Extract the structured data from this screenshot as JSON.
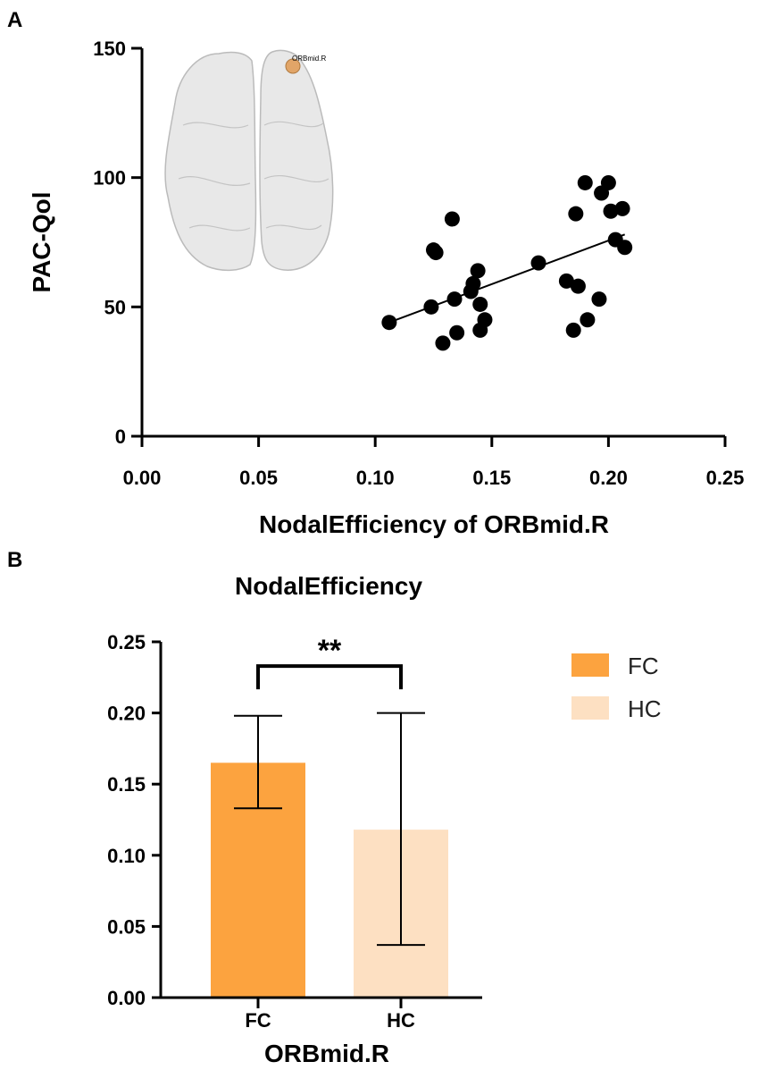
{
  "panels": {
    "a_label": "A",
    "b_label": "B"
  },
  "colors": {
    "axis": "#000000",
    "point": "#000000",
    "fc_bar": "#fca33f",
    "hc_bar": "#fde0c2",
    "brain_fill": "#e6e6e6",
    "brain_stroke": "#b4b4b4",
    "roi_node": "#e1a568"
  },
  "brain_inset": {
    "roi_label": "ORBmid.R",
    "icon": "brain-top-view-icon"
  },
  "chart_data": [
    {
      "type": "scatter",
      "title": "",
      "xlabel": "NodalEfficiency of ORBmid.R",
      "ylabel": "PAC-Qol",
      "xlim": [
        0,
        0.25
      ],
      "ylim": [
        0,
        150
      ],
      "xticks": [
        0.0,
        0.05,
        0.1,
        0.15,
        0.2,
        0.25
      ],
      "xtick_labels": [
        "0.00",
        "0.05",
        "0.10",
        "0.15",
        "0.20",
        "0.25"
      ],
      "yticks": [
        0,
        50,
        100,
        150
      ],
      "ytick_labels": [
        "0",
        "50",
        "100",
        "150"
      ],
      "grid": false,
      "points": [
        {
          "x": 0.106,
          "y": 44
        },
        {
          "x": 0.124,
          "y": 50
        },
        {
          "x": 0.125,
          "y": 72
        },
        {
          "x": 0.126,
          "y": 71
        },
        {
          "x": 0.129,
          "y": 36
        },
        {
          "x": 0.133,
          "y": 84
        },
        {
          "x": 0.134,
          "y": 53
        },
        {
          "x": 0.135,
          "y": 40
        },
        {
          "x": 0.141,
          "y": 56
        },
        {
          "x": 0.142,
          "y": 59
        },
        {
          "x": 0.144,
          "y": 64
        },
        {
          "x": 0.145,
          "y": 51
        },
        {
          "x": 0.145,
          "y": 41
        },
        {
          "x": 0.147,
          "y": 45
        },
        {
          "x": 0.17,
          "y": 67
        },
        {
          "x": 0.182,
          "y": 60
        },
        {
          "x": 0.185,
          "y": 41
        },
        {
          "x": 0.186,
          "y": 86
        },
        {
          "x": 0.187,
          "y": 58
        },
        {
          "x": 0.19,
          "y": 98
        },
        {
          "x": 0.191,
          "y": 45
        },
        {
          "x": 0.196,
          "y": 53
        },
        {
          "x": 0.197,
          "y": 94
        },
        {
          "x": 0.2,
          "y": 98
        },
        {
          "x": 0.201,
          "y": 87
        },
        {
          "x": 0.203,
          "y": 76
        },
        {
          "x": 0.206,
          "y": 88
        },
        {
          "x": 0.207,
          "y": 73
        }
      ],
      "fit_line": {
        "x": [
          0.106,
          0.207
        ],
        "y": [
          44,
          78
        ]
      }
    },
    {
      "type": "bar",
      "title": "NodalEfficiency",
      "xlabel": "ORBmid.R",
      "ylabel": "",
      "ylim": [
        0,
        0.25
      ],
      "yticks": [
        0.0,
        0.05,
        0.1,
        0.15,
        0.2,
        0.25
      ],
      "ytick_labels": [
        "0.00",
        "0.05",
        "0.10",
        "0.15",
        "0.20",
        "0.25"
      ],
      "categories": [
        "FC",
        "HC"
      ],
      "values": [
        0.165,
        0.118
      ],
      "error_bars": [
        {
          "low": 0.133,
          "high": 0.198
        },
        {
          "low": 0.037,
          "high": 0.2
        }
      ],
      "significance": {
        "label": "**",
        "between": [
          "FC",
          "HC"
        ],
        "level": 0.233
      },
      "legend": {
        "position": "top-right",
        "entries": [
          {
            "label": "FC",
            "color": "#fca33f"
          },
          {
            "label": "HC",
            "color": "#fde0c2"
          }
        ]
      }
    }
  ]
}
